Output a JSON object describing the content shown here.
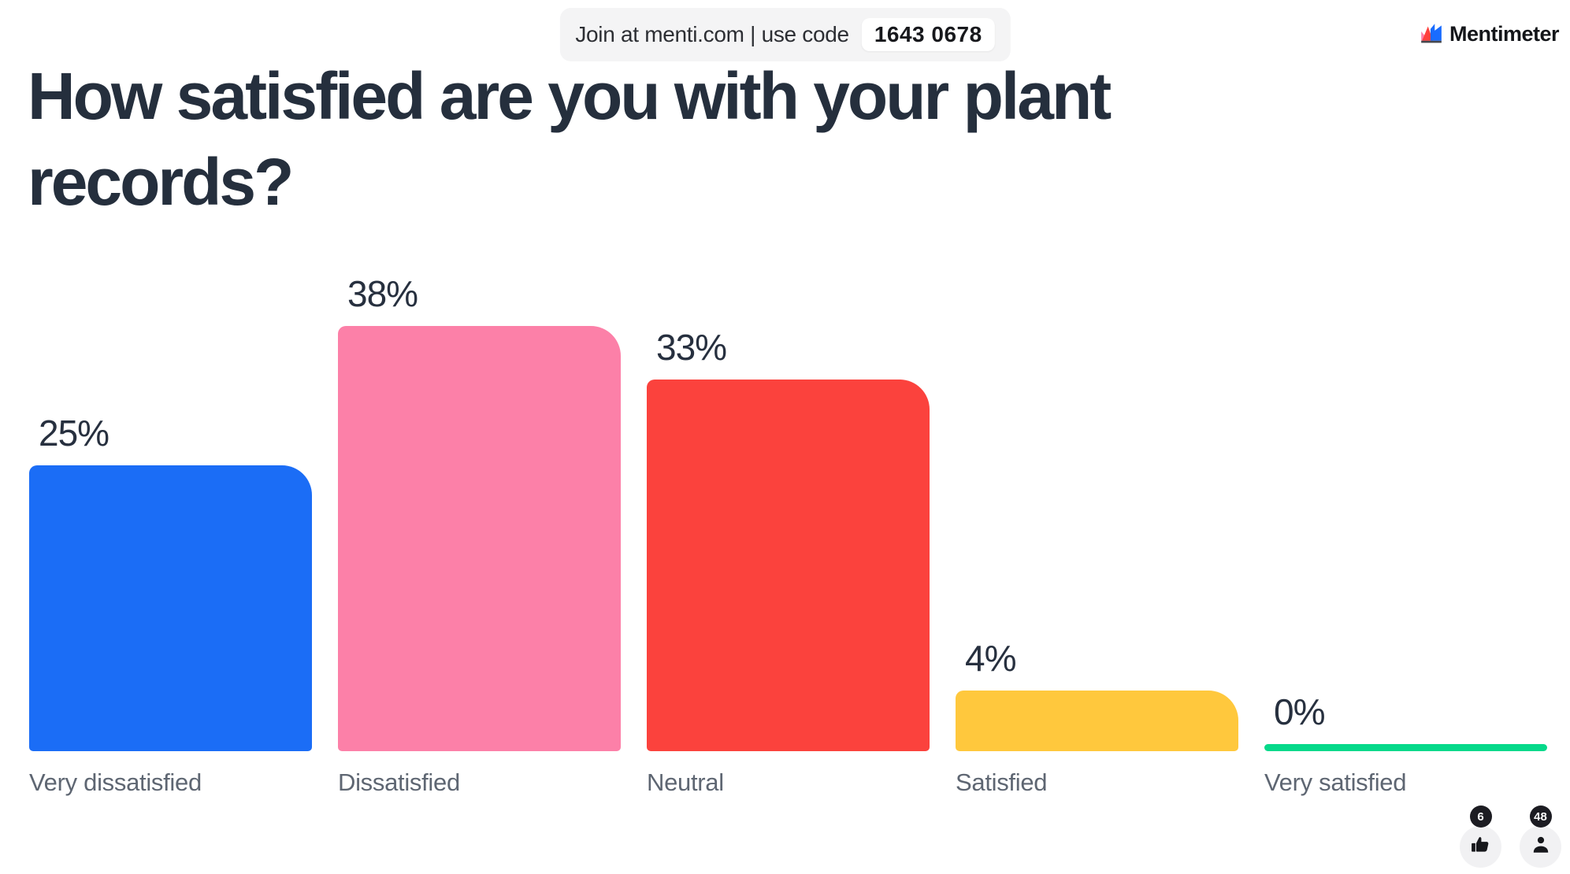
{
  "banner": {
    "text": "Join at menti.com | use code",
    "code": "1643 0678"
  },
  "brand": {
    "name": "Mentimeter"
  },
  "title": "How satisfied are you with your plant records?",
  "chart_data": {
    "type": "bar",
    "title": "How satisfied are you with your plant records?",
    "categories": [
      "Very dissatisfied",
      "Dissatisfied",
      "Neutral",
      "Satisfied",
      "Very satisfied"
    ],
    "values": [
      25,
      38,
      33,
      4,
      0
    ],
    "value_labels": [
      "25%",
      "38%",
      "33%",
      "4%",
      "0%"
    ],
    "colors": [
      "#1b6df6",
      "#fc80a8",
      "#fb423d",
      "#ffc83d",
      "#06d98a"
    ],
    "xlabel": "",
    "ylabel": "",
    "ylim": [
      0,
      40
    ],
    "grid": false,
    "legend": null,
    "value_suffix": "%"
  },
  "reactions": {
    "likes": "6",
    "participants": "48"
  },
  "ui_colors": {
    "title_text": "#252f3d",
    "category_text": "#5e6672",
    "banner_bg": "#f4f4f5",
    "badge_bg": "#1c1c22"
  }
}
